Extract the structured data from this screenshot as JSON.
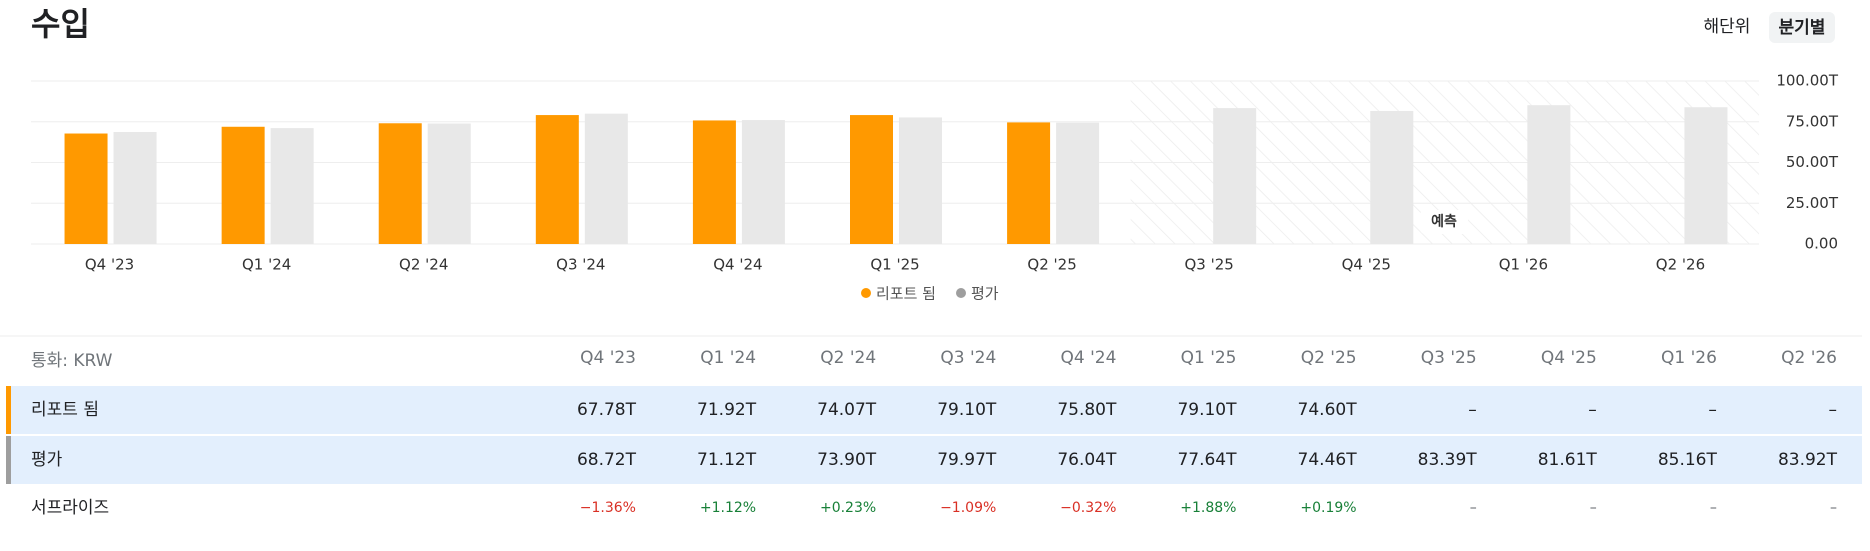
{
  "chart_data": {
    "type": "bar",
    "title": "수입",
    "categories": [
      "Q4 '23",
      "Q1 '24",
      "Q2 '24",
      "Q3 '24",
      "Q4 '24",
      "Q1 '25",
      "Q2 '25",
      "Q3 '25",
      "Q4 '25",
      "Q1 '26",
      "Q2 '26"
    ],
    "series": [
      {
        "name": "리포트 됨",
        "color": "#ff9900",
        "values": [
          67.78,
          71.92,
          74.07,
          79.1,
          75.8,
          79.1,
          74.6,
          null,
          null,
          null,
          null
        ]
      },
      {
        "name": "평가",
        "color": "#e8e8e8",
        "values": [
          68.72,
          71.12,
          73.9,
          79.97,
          76.04,
          77.64,
          74.46,
          83.39,
          81.61,
          85.16,
          83.92
        ]
      }
    ],
    "ylim": [
      0,
      100
    ],
    "yticks": [
      {
        "value": 0,
        "label": "0.00"
      },
      {
        "value": 25,
        "label": "25.00T"
      },
      {
        "value": 50,
        "label": "50.00T"
      },
      {
        "value": 75,
        "label": "75.00T"
      },
      {
        "value": 100,
        "label": "100.00T"
      }
    ],
    "grid": true,
    "forecast_label": "예측",
    "forecast_start": 7,
    "legend": "bottom"
  },
  "toggles": [
    "해단위",
    "분기별"
  ],
  "table": {
    "currency": "통화: KRW",
    "columns": [
      "Q4 '23",
      "Q1 '24",
      "Q2 '24",
      "Q3 '24",
      "Q4 '24",
      "Q1 '25",
      "Q2 '25",
      "Q3 '25",
      "Q4 '25",
      "Q1 '26",
      "Q2 '26"
    ],
    "rows": [
      {
        "name": "리포트 됨",
        "cells": [
          "67.78T",
          "71.92T",
          "74.07T",
          "79.10T",
          "75.80T",
          "79.10T",
          "74.60T",
          "–",
          "–",
          "–",
          "–"
        ]
      },
      {
        "name": "평가",
        "cells": [
          "68.72T",
          "71.12T",
          "73.90T",
          "79.97T",
          "76.04T",
          "77.64T",
          "74.46T",
          "83.39T",
          "81.61T",
          "85.16T",
          "83.92T"
        ]
      },
      {
        "name": "서프라이즈",
        "cells": [
          "−1.36%",
          "+1.12%",
          "+0.23%",
          "−1.09%",
          "−0.32%",
          "+1.88%",
          "+0.19%",
          "–",
          "–",
          "–",
          "–"
        ]
      }
    ]
  }
}
